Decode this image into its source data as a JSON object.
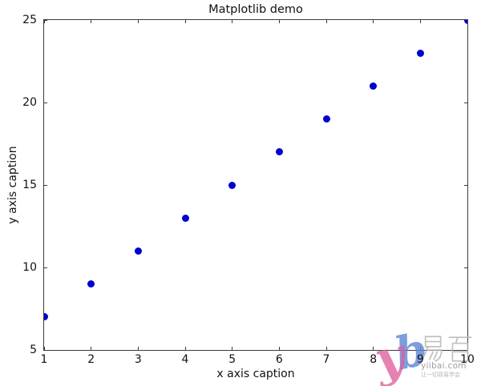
{
  "chart_data": {
    "type": "scatter",
    "title": "Matplotlib demo",
    "xlabel": "x axis caption",
    "ylabel": "y axis caption",
    "x": [
      1,
      2,
      3,
      4,
      5,
      6,
      7,
      8,
      9,
      10
    ],
    "y": [
      7,
      9,
      11,
      13,
      15,
      17,
      19,
      21,
      23,
      25
    ],
    "xlim": [
      1,
      10
    ],
    "ylim": [
      5,
      25
    ],
    "xticks": [
      1,
      2,
      3,
      4,
      5,
      6,
      7,
      8,
      9,
      10
    ],
    "yticks": [
      5,
      10,
      15,
      20,
      25
    ],
    "grid": false,
    "legend": null,
    "marker": "circle",
    "marker_color": "#0000cd",
    "axis_color": "#3b3b3b",
    "text_color": "#111111"
  },
  "watermark": {
    "name": "易百",
    "domain": "yiibai.com",
    "tagline": "让一切容易学会",
    "logo_colors": {
      "pink": "#df5f9d",
      "blue": "#5c86d6"
    },
    "text_color": "#9e9e9e"
  }
}
